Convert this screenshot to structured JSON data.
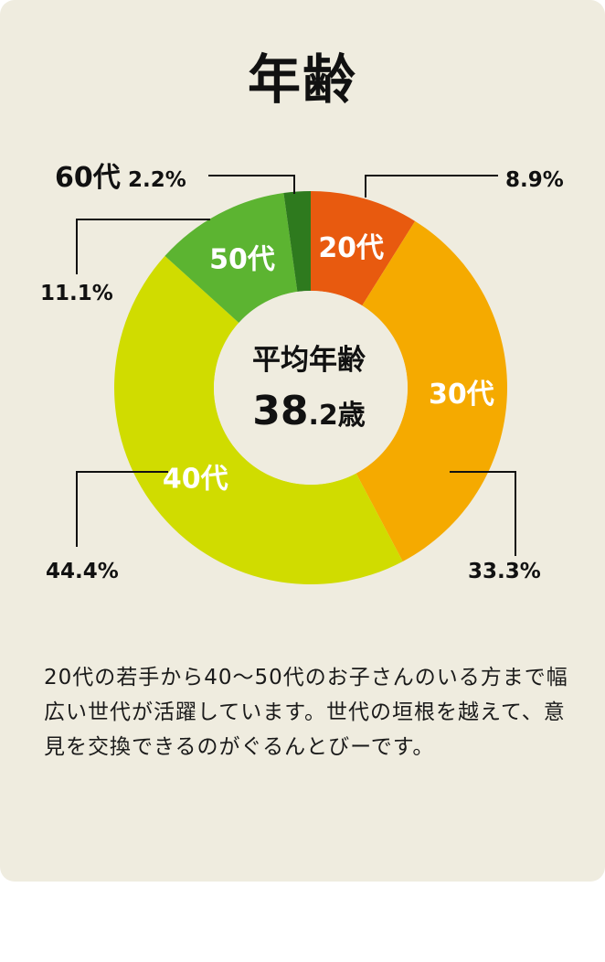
{
  "title": "年齢",
  "center": {
    "label": "平均年齢",
    "value_number": "38",
    "value_decimal": ".2",
    "value_unit": "歳"
  },
  "chart_data": {
    "type": "pie",
    "title": "年齢",
    "categories": [
      "20代",
      "30代",
      "40代",
      "50代",
      "60代"
    ],
    "values": [
      8.9,
      33.3,
      44.4,
      11.1,
      2.2
    ],
    "percent_labels": [
      "8.9%",
      "33.3%",
      "44.4%",
      "11.1%",
      "2.2%"
    ],
    "colors": [
      "#e85a0f",
      "#f5aa00",
      "#d0dc00",
      "#5cb431",
      "#2e7a1e"
    ],
    "style": "donut"
  },
  "description": "20代の若手から40〜50代のお子さんのいる方まで幅広い世代が活躍しています。世代の垣根を越えて、意見を交換できるのがぐるんとびーです。"
}
